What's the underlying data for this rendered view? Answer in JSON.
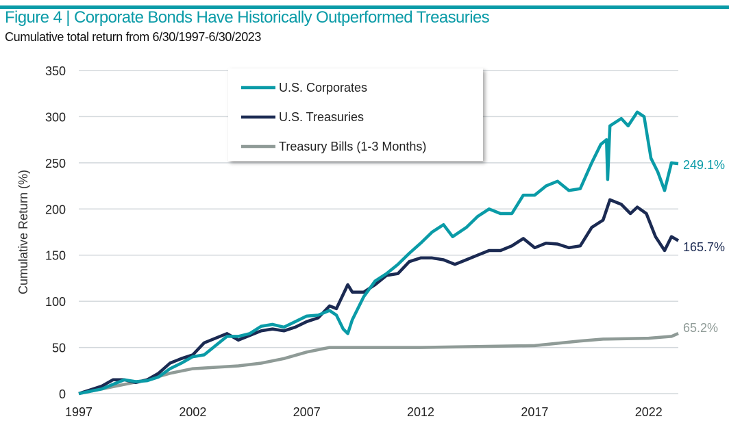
{
  "title": "Figure 4 | Corporate Bonds Have Historically Outperformed Treasuries",
  "subtitle": "Cumulative total return from 6/30/1997-6/30/2023",
  "chart_data": {
    "type": "line",
    "title": "Figure 4 | Corporate Bonds Have Historically Outperformed Treasuries",
    "subtitle": "Cumulative total return from 6/30/1997-6/30/2023",
    "xlabel": "",
    "ylabel": "Cumulative Return (%)",
    "xlim": [
      1997,
      2023.3
    ],
    "ylim": [
      0,
      350
    ],
    "xticks": [
      1997,
      2002,
      2007,
      2012,
      2017,
      2022
    ],
    "yticks": [
      0,
      50,
      100,
      150,
      200,
      250,
      300,
      350
    ],
    "grid": true,
    "legend": "top-center",
    "series": [
      {
        "name": "U.S. Corporates",
        "color": "#0a9ba7",
        "end_label": "249.1%",
        "x": [
          1997,
          1998,
          1998.5,
          1999,
          1999.5,
          2000,
          2000.5,
          2001,
          2001.5,
          2002,
          2002.5,
          2003,
          2003.5,
          2004,
          2004.5,
          2005,
          2005.5,
          2006,
          2006.5,
          2007,
          2007.5,
          2008,
          2008.3,
          2008.6,
          2008.8,
          2009,
          2009.5,
          2010,
          2010.5,
          2011,
          2011.5,
          2012,
          2012.5,
          2013,
          2013.4,
          2014,
          2014.5,
          2015,
          2015.5,
          2016,
          2016.5,
          2017,
          2017.5,
          2018,
          2018.5,
          2019,
          2019.5,
          2019.9,
          2020.15,
          2020.2,
          2020.3,
          2020.8,
          2021.1,
          2021.5,
          2021.8,
          2022.1,
          2022.4,
          2022.7,
          2023,
          2023.3
        ],
        "values": [
          0,
          5,
          10,
          15,
          13,
          14,
          18,
          27,
          33,
          40,
          42,
          52,
          62,
          62,
          65,
          73,
          75,
          72,
          78,
          84,
          85,
          90,
          85,
          70,
          65,
          80,
          105,
          122,
          130,
          140,
          152,
          163,
          175,
          183,
          170,
          180,
          192,
          200,
          195,
          195,
          215,
          215,
          225,
          230,
          220,
          222,
          250,
          270,
          275,
          232,
          290,
          298,
          290,
          305,
          300,
          255,
          240,
          220,
          250,
          249.1
        ]
      },
      {
        "name": "U.S. Treasuries",
        "color": "#1b2a52",
        "end_label": "165.7%",
        "x": [
          1997,
          1998,
          1998.5,
          1999,
          1999.5,
          2000,
          2000.5,
          2001,
          2001.5,
          2002,
          2002.5,
          2003,
          2003.5,
          2004,
          2004.5,
          2005,
          2005.5,
          2006,
          2006.5,
          2007,
          2007.5,
          2008,
          2008.3,
          2008.8,
          2009,
          2009.5,
          2010,
          2010.5,
          2011,
          2011.5,
          2012,
          2012.5,
          2013,
          2013.5,
          2014,
          2014.5,
          2015,
          2015.5,
          2016,
          2016.5,
          2017,
          2017.5,
          2018,
          2018.5,
          2019,
          2019.5,
          2020,
          2020.3,
          2020.8,
          2021.2,
          2021.5,
          2021.9,
          2022.3,
          2022.7,
          2023,
          2023.3
        ],
        "values": [
          0,
          8,
          15,
          15,
          12,
          15,
          22,
          33,
          38,
          42,
          55,
          60,
          65,
          58,
          63,
          68,
          70,
          68,
          72,
          78,
          82,
          95,
          92,
          118,
          110,
          110,
          118,
          128,
          130,
          143,
          147,
          147,
          145,
          140,
          145,
          150,
          155,
          155,
          160,
          168,
          158,
          163,
          162,
          158,
          160,
          180,
          188,
          210,
          205,
          195,
          202,
          195,
          170,
          155,
          170,
          165.7
        ]
      },
      {
        "name": "Treasury Bills (1-3 Months)",
        "color": "#8f9b97",
        "end_label": "65.2%",
        "x": [
          1997,
          2000,
          2001,
          2002,
          2004,
          2005,
          2006,
          2007,
          2008,
          2012,
          2017,
          2019,
          2020,
          2022,
          2023,
          2023.3
        ],
        "values": [
          0,
          15,
          22,
          27,
          30,
          33,
          38,
          45,
          50,
          50,
          52,
          57,
          59,
          60,
          62,
          65.2
        ]
      }
    ]
  }
}
